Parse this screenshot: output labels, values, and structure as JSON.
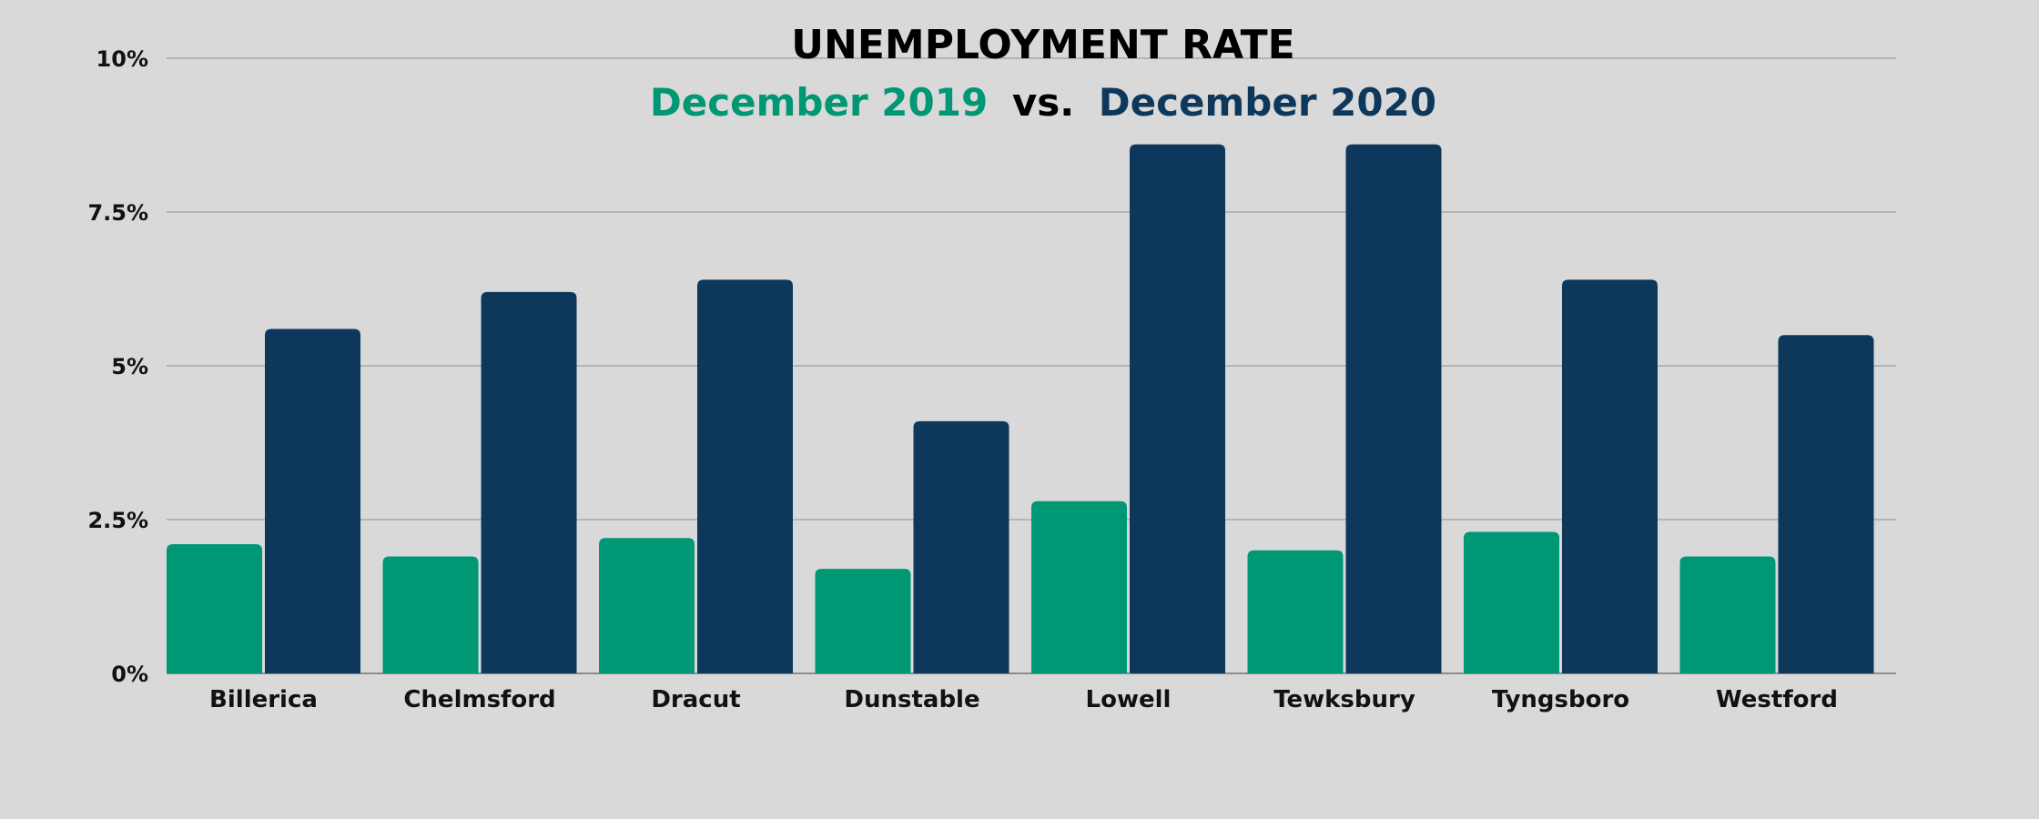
{
  "chart_data": {
    "type": "bar",
    "title": "UNEMPLOYMENT RATE",
    "subtitle": {
      "series_a": "December 2019",
      "separator": "vs.",
      "series_b": "December 2020"
    },
    "categories": [
      "Billerica",
      "Chelmsford",
      "Dracut",
      "Dunstable",
      "Lowell",
      "Tewksbury",
      "Tyngsboro",
      "Westford"
    ],
    "series": [
      {
        "name": "December 2019",
        "color": "#009775",
        "values": [
          2.1,
          1.9,
          2.2,
          1.7,
          2.8,
          2.0,
          2.3,
          1.9
        ]
      },
      {
        "name": "December 2020",
        "color": "#0d385c",
        "values": [
          5.6,
          6.2,
          6.4,
          4.1,
          8.6,
          8.6,
          6.4,
          5.5
        ]
      }
    ],
    "ylim": [
      0,
      10
    ],
    "yticks": [
      {
        "value": 0,
        "label": "0%"
      },
      {
        "value": 2.5,
        "label": "2.5%"
      },
      {
        "value": 5,
        "label": "5%"
      },
      {
        "value": 7.5,
        "label": "7.5%"
      },
      {
        "value": 10,
        "label": "10%"
      }
    ],
    "grid": true,
    "legend": "subtitle"
  },
  "colors": {
    "background": "#d9d9d9",
    "grid": "#a8a8a8",
    "text": "#111111",
    "accent_2019": "#009775",
    "accent_2020": "#0d385c"
  }
}
